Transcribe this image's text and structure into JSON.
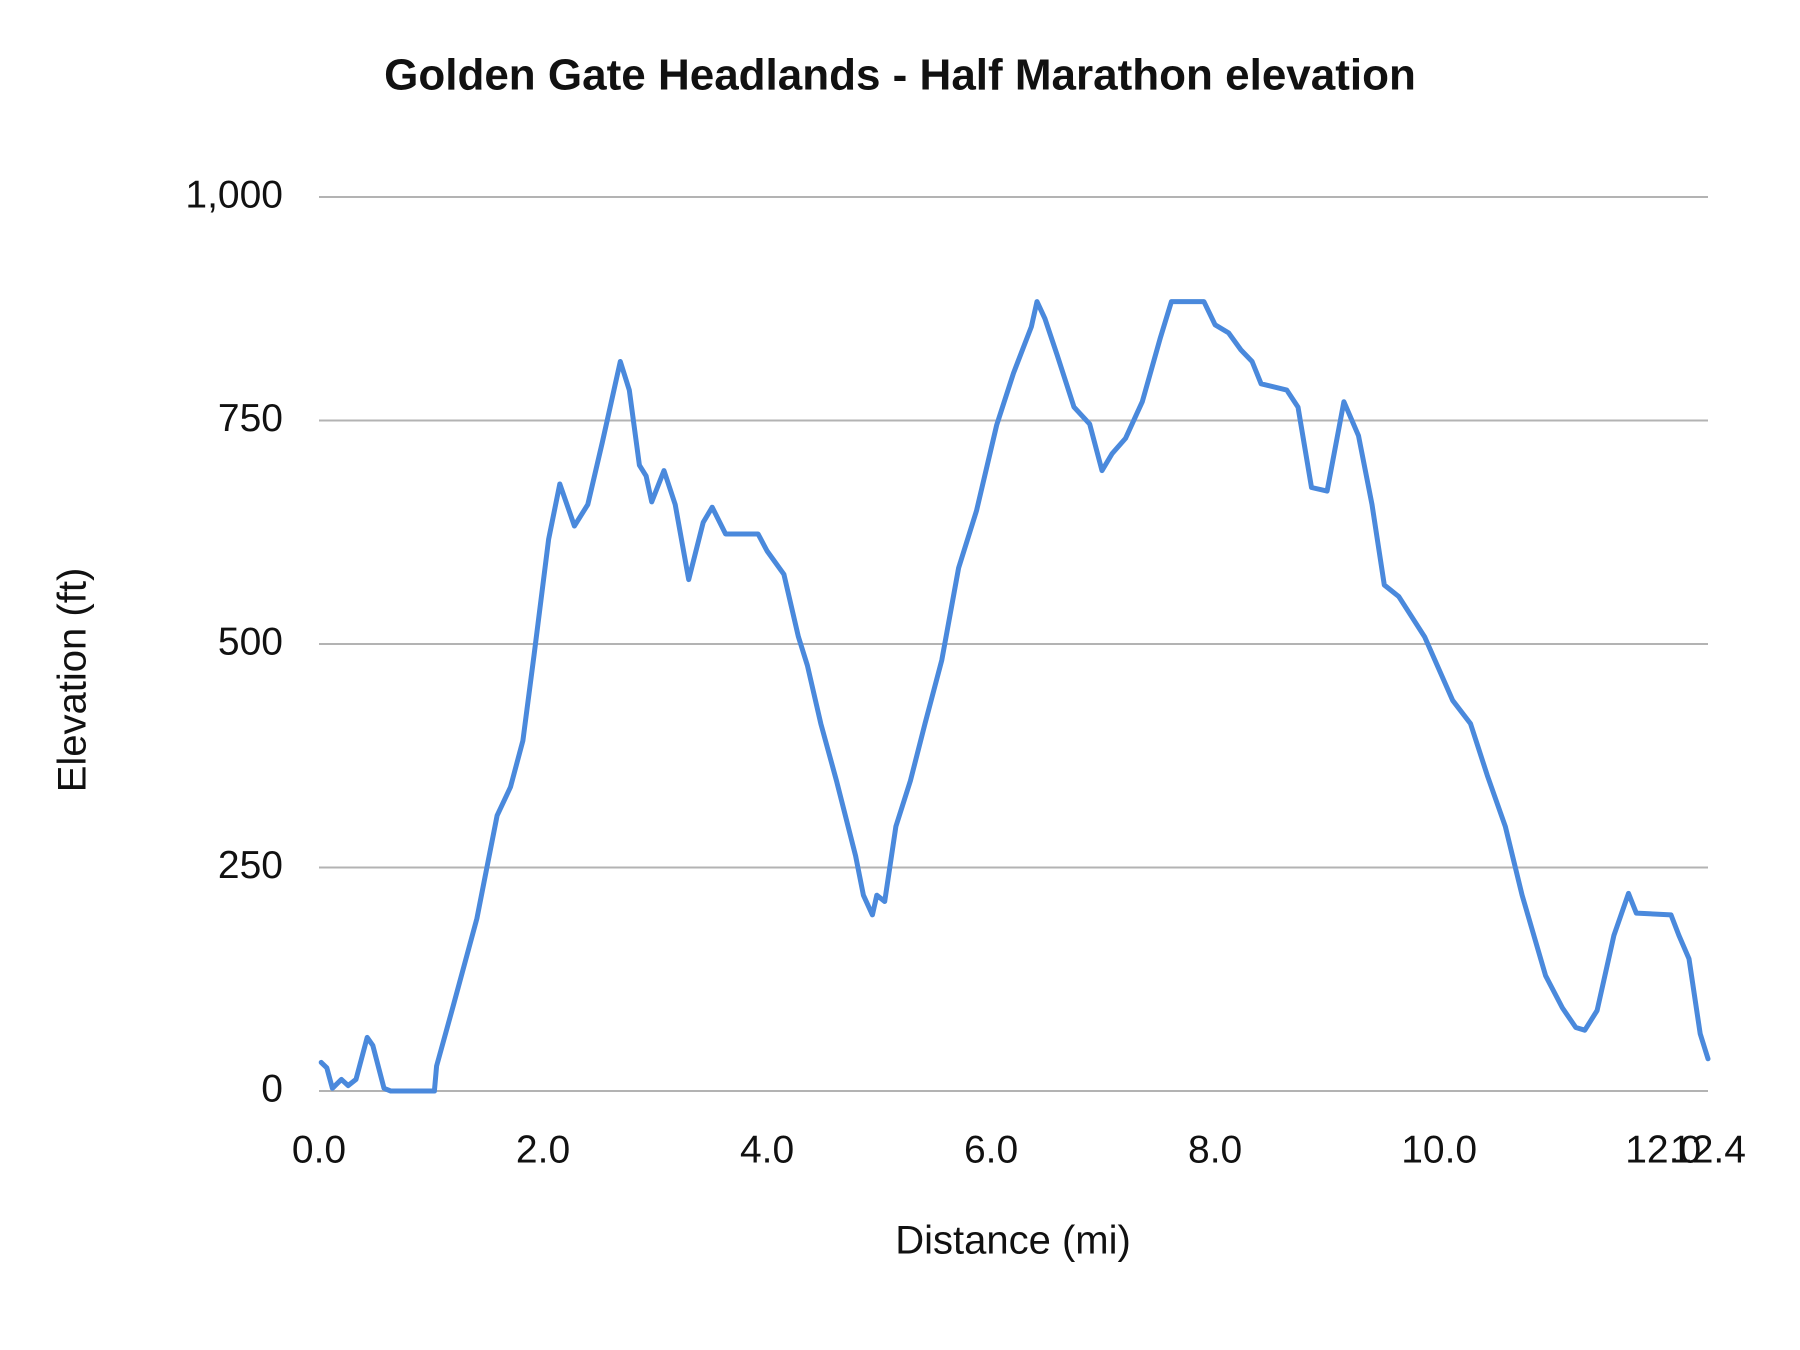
{
  "chart_data": {
    "type": "line",
    "title": "Golden Gate Headlands - Half Marathon elevation",
    "x_label": "Distance (mi)",
    "y_label": "Elevation (ft)",
    "xlim": [
      0,
      12.4
    ],
    "ylim": [
      0,
      1000
    ],
    "xticks": [
      {
        "value": 0,
        "label": "0.0"
      },
      {
        "value": 2,
        "label": "2.0"
      },
      {
        "value": 4,
        "label": "4.0"
      },
      {
        "value": 6,
        "label": "6.0"
      },
      {
        "value": 8,
        "label": "8.0"
      },
      {
        "value": 10,
        "label": "10.0"
      },
      {
        "value": 12,
        "label": "12.0"
      },
      {
        "value": 12.4,
        "label": "12.4"
      }
    ],
    "yticks": [
      0,
      250,
      500,
      750,
      {
        "value": 1000,
        "label": "1,000"
      }
    ],
    "grid": true,
    "series": [
      {
        "name": "Elevation",
        "color": "#4a89dc",
        "x": [
          0.02,
          0.07,
          0.12,
          0.2,
          0.26,
          0.33,
          0.43,
          0.48,
          0.58,
          0.64,
          1.03,
          1.05,
          1.2,
          1.41,
          1.46,
          1.59,
          1.71,
          1.82,
          1.92,
          2.05,
          2.15,
          2.28,
          2.4,
          2.53,
          2.69,
          2.77,
          2.86,
          2.92,
          2.97,
          3.08,
          3.18,
          3.3,
          3.43,
          3.51,
          3.63,
          3.92,
          4.0,
          4.15,
          4.28,
          4.36,
          4.48,
          4.62,
          4.79,
          4.86,
          4.94,
          4.98,
          5.05,
          5.15,
          5.28,
          5.41,
          5.56,
          5.71,
          5.87,
          6.05,
          6.2,
          6.36,
          6.41,
          6.48,
          6.59,
          6.74,
          6.88,
          6.99,
          7.08,
          7.2,
          7.35,
          7.51,
          7.61,
          7.9,
          8.0,
          8.12,
          8.23,
          8.33,
          8.41,
          8.64,
          8.74,
          8.86,
          9.0,
          9.15,
          9.28,
          9.4,
          9.51,
          9.64,
          9.87,
          10.12,
          10.28,
          10.43,
          10.59,
          10.74,
          10.95,
          11.1,
          11.22,
          11.3,
          11.41,
          11.56,
          11.69,
          11.76,
          12.07,
          12.14,
          12.23,
          12.33,
          12.4
        ],
        "values": [
          32,
          26,
          3,
          13,
          6,
          13,
          60,
          51,
          3,
          0,
          0,
          28,
          96,
          193,
          225,
          308,
          340,
          392,
          488,
          617,
          679,
          632,
          656,
          726,
          816,
          784,
          700,
          688,
          659,
          694,
          656,
          572,
          636,
          653,
          623,
          623,
          604,
          578,
          508,
          476,
          411,
          347,
          263,
          219,
          197,
          219,
          212,
          296,
          347,
          411,
          482,
          585,
          649,
          745,
          803,
          855,
          883,
          864,
          823,
          765,
          746,
          694,
          713,
          730,
          771,
          842,
          883,
          883,
          857,
          848,
          829,
          816,
          791,
          784,
          765,
          675,
          671,
          771,
          733,
          656,
          566,
          553,
          508,
          437,
          411,
          353,
          296,
          219,
          129,
          93,
          71,
          68,
          90,
          174,
          221,
          199,
          197,
          174,
          148,
          64,
          36
        ]
      }
    ]
  }
}
